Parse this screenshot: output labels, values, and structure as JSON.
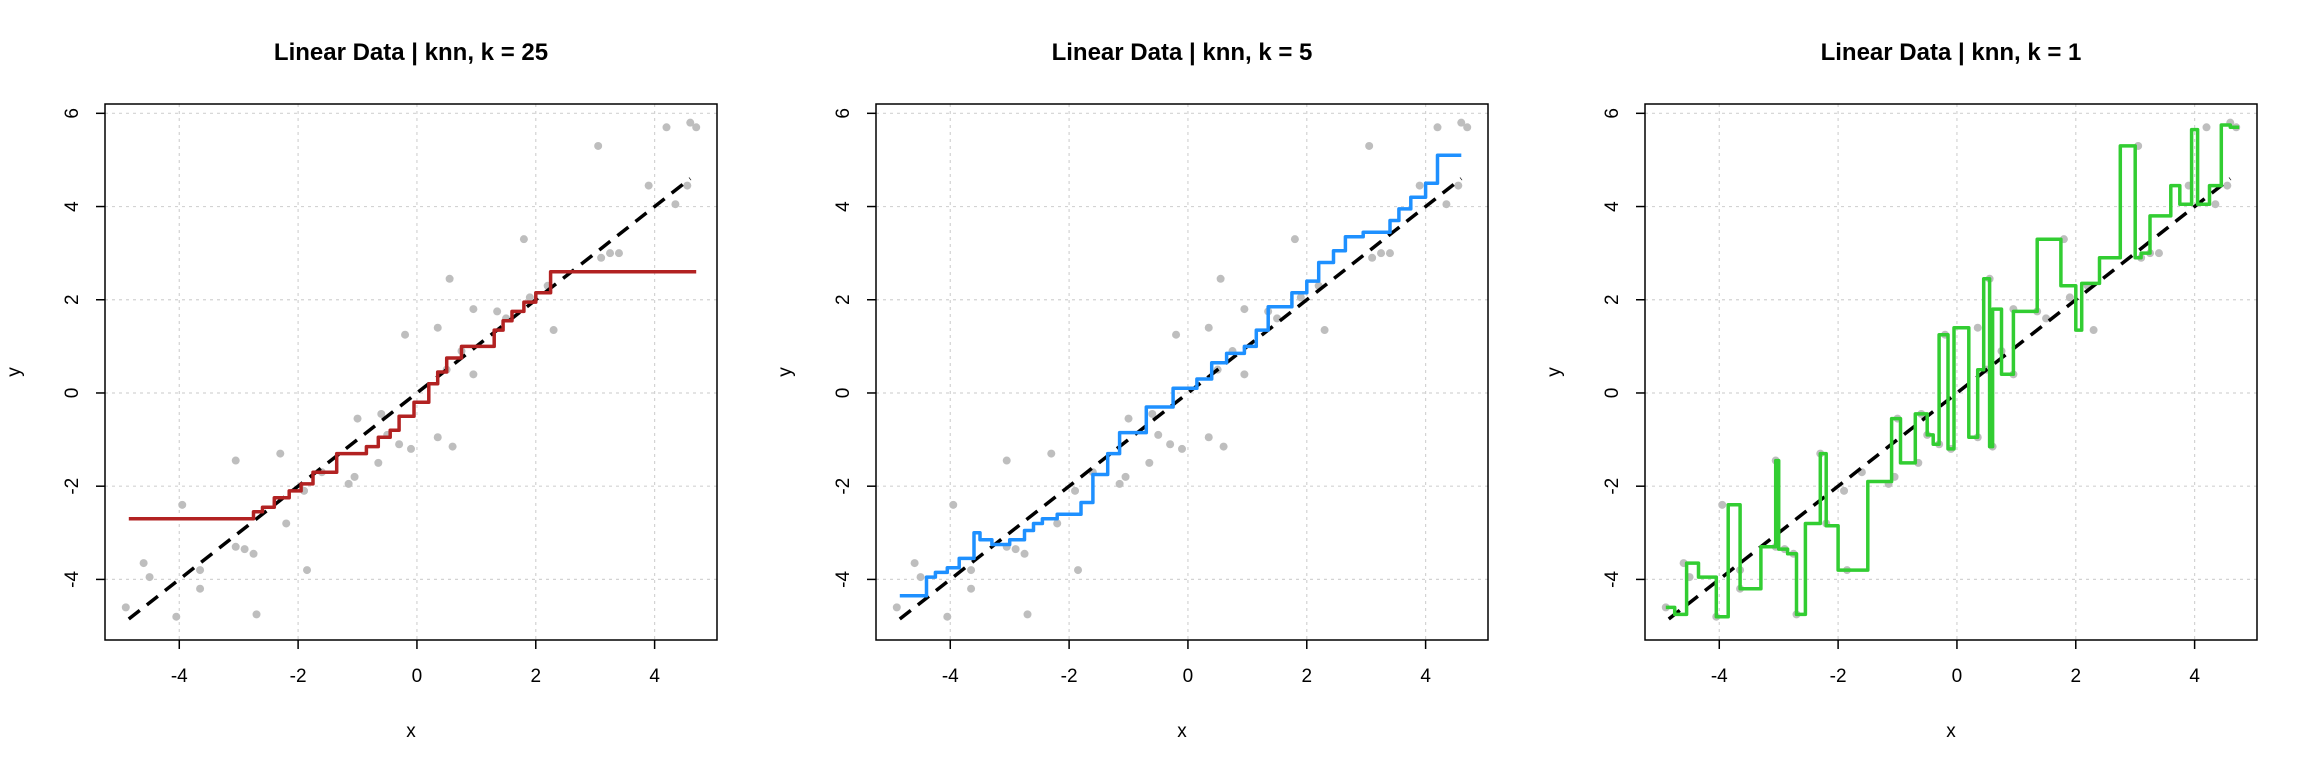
{
  "chart_data": [
    {
      "type": "line",
      "title": "Linear Data | knn, k = 25",
      "xlabel": "x",
      "ylabel": "y",
      "xlim": [
        -5.25,
        5.05
      ],
      "ylim": [
        -5.3,
        6.2
      ],
      "xticks": [
        -4,
        -2,
        0,
        2,
        4
      ],
      "yticks": [
        -4,
        -2,
        0,
        2,
        4,
        6
      ],
      "grid": true,
      "reference_line": {
        "x": [
          -4.85,
          4.6
        ],
        "y": [
          -4.85,
          4.6
        ],
        "style": "dashed",
        "color": "#000000"
      },
      "points": [
        [
          -4.9,
          -4.6
        ],
        [
          -4.6,
          -3.65
        ],
        [
          -4.5,
          -3.95
        ],
        [
          -4.05,
          -4.8
        ],
        [
          -3.95,
          -2.4
        ],
        [
          -3.65,
          -4.2
        ],
        [
          -3.65,
          -3.8
        ],
        [
          -3.05,
          -1.45
        ],
        [
          -3.05,
          -3.3
        ],
        [
          -2.9,
          -3.35
        ],
        [
          -2.75,
          -3.45
        ],
        [
          -2.7,
          -4.75
        ],
        [
          -2.3,
          -1.3
        ],
        [
          -2.2,
          -2.8
        ],
        [
          -1.9,
          -2.1
        ],
        [
          -1.85,
          -3.8
        ],
        [
          -1.6,
          -1.7
        ],
        [
          -1.15,
          -1.95
        ],
        [
          -1.05,
          -1.8
        ],
        [
          -1.0,
          -0.55
        ],
        [
          -0.65,
          -1.5
        ],
        [
          -0.6,
          -0.45
        ],
        [
          -0.5,
          -0.9
        ],
        [
          -0.3,
          -1.1
        ],
        [
          -0.2,
          1.25
        ],
        [
          -0.1,
          -1.2
        ],
        [
          0.35,
          1.4
        ],
        [
          0.35,
          -0.95
        ],
        [
          0.5,
          0.5
        ],
        [
          0.55,
          2.45
        ],
        [
          0.6,
          -1.15
        ],
        [
          0.75,
          0.9
        ],
        [
          0.95,
          1.8
        ],
        [
          0.95,
          0.4
        ],
        [
          1.35,
          1.75
        ],
        [
          1.5,
          1.6
        ],
        [
          1.8,
          3.3
        ],
        [
          1.9,
          2.05
        ],
        [
          2.2,
          2.3
        ],
        [
          2.3,
          1.35
        ],
        [
          3.05,
          5.3
        ],
        [
          3.1,
          2.9
        ],
        [
          3.25,
          3.0
        ],
        [
          3.4,
          3.0
        ],
        [
          3.9,
          4.45
        ],
        [
          4.2,
          5.7
        ],
        [
          4.35,
          4.05
        ],
        [
          4.55,
          4.45
        ],
        [
          4.6,
          5.8
        ],
        [
          4.7,
          5.7
        ]
      ],
      "series": [
        {
          "name": "",
          "color": "#b22222",
          "x": [
            -4.85,
            -2.75,
            -2.75,
            -2.6,
            -2.6,
            -2.4,
            -2.4,
            -2.15,
            -2.15,
            -1.95,
            -1.95,
            -1.75,
            -1.75,
            -1.35,
            -1.35,
            -0.85,
            -0.85,
            -0.65,
            -0.65,
            -0.45,
            -0.45,
            -0.3,
            -0.3,
            -0.05,
            -0.05,
            0.2,
            0.2,
            0.35,
            0.35,
            0.5,
            0.5,
            0.75,
            0.75,
            1.3,
            1.3,
            1.45,
            1.45,
            1.6,
            1.6,
            1.8,
            1.8,
            2.0,
            2.0,
            2.25,
            2.25,
            4.7
          ],
          "y": [
            -2.7,
            -2.7,
            -2.55,
            -2.55,
            -2.45,
            -2.45,
            -2.25,
            -2.25,
            -2.1,
            -2.1,
            -1.95,
            -1.95,
            -1.7,
            -1.7,
            -1.3,
            -1.3,
            -1.15,
            -1.15,
            -0.95,
            -0.95,
            -0.8,
            -0.8,
            -0.5,
            -0.5,
            -0.2,
            -0.2,
            0.2,
            0.2,
            0.45,
            0.45,
            0.75,
            0.75,
            1.0,
            1.0,
            1.35,
            1.35,
            1.55,
            1.55,
            1.75,
            1.75,
            1.95,
            1.95,
            2.15,
            2.15,
            2.6,
            2.6
          ]
        }
      ]
    },
    {
      "type": "line",
      "title": "Linear Data | knn, k = 5",
      "xlabel": "x",
      "ylabel": "y",
      "xlim": [
        -5.25,
        5.05
      ],
      "ylim": [
        -5.3,
        6.2
      ],
      "xticks": [
        -4,
        -2,
        0,
        2,
        4
      ],
      "yticks": [
        -4,
        -2,
        0,
        2,
        4,
        6
      ],
      "grid": true,
      "reference_line": {
        "x": [
          -4.85,
          4.6
        ],
        "y": [
          -4.85,
          4.6
        ],
        "style": "dashed",
        "color": "#000000"
      },
      "points": [
        [
          -4.9,
          -4.6
        ],
        [
          -4.6,
          -3.65
        ],
        [
          -4.5,
          -3.95
        ],
        [
          -4.05,
          -4.8
        ],
        [
          -3.95,
          -2.4
        ],
        [
          -3.65,
          -4.2
        ],
        [
          -3.65,
          -3.8
        ],
        [
          -3.05,
          -1.45
        ],
        [
          -3.05,
          -3.3
        ],
        [
          -2.9,
          -3.35
        ],
        [
          -2.75,
          -3.45
        ],
        [
          -2.7,
          -4.75
        ],
        [
          -2.3,
          -1.3
        ],
        [
          -2.2,
          -2.8
        ],
        [
          -1.9,
          -2.1
        ],
        [
          -1.85,
          -3.8
        ],
        [
          -1.6,
          -1.7
        ],
        [
          -1.15,
          -1.95
        ],
        [
          -1.05,
          -1.8
        ],
        [
          -1.0,
          -0.55
        ],
        [
          -0.65,
          -1.5
        ],
        [
          -0.6,
          -0.45
        ],
        [
          -0.5,
          -0.9
        ],
        [
          -0.3,
          -1.1
        ],
        [
          -0.2,
          1.25
        ],
        [
          -0.1,
          -1.2
        ],
        [
          0.35,
          1.4
        ],
        [
          0.35,
          -0.95
        ],
        [
          0.5,
          0.5
        ],
        [
          0.55,
          2.45
        ],
        [
          0.6,
          -1.15
        ],
        [
          0.75,
          0.9
        ],
        [
          0.95,
          1.8
        ],
        [
          0.95,
          0.4
        ],
        [
          1.35,
          1.75
        ],
        [
          1.5,
          1.6
        ],
        [
          1.8,
          3.3
        ],
        [
          1.9,
          2.05
        ],
        [
          2.2,
          2.3
        ],
        [
          2.3,
          1.35
        ],
        [
          3.05,
          5.3
        ],
        [
          3.1,
          2.9
        ],
        [
          3.25,
          3.0
        ],
        [
          3.4,
          3.0
        ],
        [
          3.9,
          4.45
        ],
        [
          4.2,
          5.7
        ],
        [
          4.35,
          4.05
        ],
        [
          4.55,
          4.45
        ],
        [
          4.6,
          5.8
        ],
        [
          4.7,
          5.7
        ]
      ],
      "series": [
        {
          "name": "",
          "color": "#1e90ff",
          "x": [
            -4.85,
            -4.4,
            -4.4,
            -4.25,
            -4.25,
            -4.05,
            -4.05,
            -3.85,
            -3.85,
            -3.6,
            -3.6,
            -3.5,
            -3.5,
            -3.3,
            -3.3,
            -3.0,
            -3.0,
            -2.75,
            -2.75,
            -2.6,
            -2.6,
            -2.45,
            -2.45,
            -2.2,
            -2.2,
            -1.8,
            -1.8,
            -1.6,
            -1.6,
            -1.35,
            -1.35,
            -1.15,
            -1.15,
            -0.7,
            -0.7,
            -0.25,
            -0.25,
            0.15,
            0.15,
            0.4,
            0.4,
            0.65,
            0.65,
            0.95,
            0.95,
            1.15,
            1.15,
            1.35,
            1.35,
            1.75,
            1.75,
            2.0,
            2.0,
            2.2,
            2.2,
            2.45,
            2.45,
            2.65,
            2.65,
            2.95,
            2.95,
            3.4,
            3.4,
            3.55,
            3.55,
            3.75,
            3.75,
            4.0,
            4.0,
            4.2,
            4.2,
            4.6
          ],
          "y": [
            -4.35,
            -4.35,
            -3.95,
            -3.95,
            -3.85,
            -3.85,
            -3.75,
            -3.75,
            -3.55,
            -3.55,
            -3.0,
            -3.0,
            -3.15,
            -3.15,
            -3.25,
            -3.25,
            -3.15,
            -3.15,
            -2.95,
            -2.95,
            -2.8,
            -2.8,
            -2.7,
            -2.7,
            -2.6,
            -2.6,
            -2.35,
            -2.35,
            -1.75,
            -1.75,
            -1.3,
            -1.3,
            -0.85,
            -0.85,
            -0.3,
            -0.3,
            0.1,
            0.1,
            0.3,
            0.3,
            0.65,
            0.65,
            0.85,
            0.85,
            1.0,
            1.0,
            1.35,
            1.35,
            1.85,
            1.85,
            2.15,
            2.15,
            2.4,
            2.4,
            2.8,
            2.8,
            3.05,
            3.05,
            3.35,
            3.35,
            3.45,
            3.45,
            3.7,
            3.7,
            3.95,
            3.95,
            4.2,
            4.2,
            4.5,
            4.5,
            5.1,
            5.1
          ]
        }
      ]
    },
    {
      "type": "line",
      "title": "Linear Data | knn, k = 1",
      "xlabel": "x",
      "ylabel": "y",
      "xlim": [
        -5.25,
        5.05
      ],
      "ylim": [
        -5.3,
        6.2
      ],
      "xticks": [
        -4,
        -2,
        0,
        2,
        4
      ],
      "yticks": [
        -4,
        -2,
        0,
        2,
        4,
        6
      ],
      "grid": true,
      "reference_line": {
        "x": [
          -4.85,
          4.6
        ],
        "y": [
          -4.85,
          4.6
        ],
        "style": "dashed",
        "color": "#000000"
      },
      "points": [
        [
          -4.9,
          -4.6
        ],
        [
          -4.6,
          -3.65
        ],
        [
          -4.5,
          -3.95
        ],
        [
          -4.05,
          -4.8
        ],
        [
          -3.95,
          -2.4
        ],
        [
          -3.65,
          -4.2
        ],
        [
          -3.65,
          -3.8
        ],
        [
          -3.05,
          -1.45
        ],
        [
          -3.05,
          -3.3
        ],
        [
          -2.9,
          -3.35
        ],
        [
          -2.75,
          -3.45
        ],
        [
          -2.7,
          -4.75
        ],
        [
          -2.3,
          -1.3
        ],
        [
          -2.2,
          -2.8
        ],
        [
          -1.9,
          -2.1
        ],
        [
          -1.85,
          -3.8
        ],
        [
          -1.6,
          -1.7
        ],
        [
          -1.15,
          -1.95
        ],
        [
          -1.05,
          -1.8
        ],
        [
          -1.0,
          -0.55
        ],
        [
          -0.65,
          -1.5
        ],
        [
          -0.6,
          -0.45
        ],
        [
          -0.5,
          -0.9
        ],
        [
          -0.3,
          -1.1
        ],
        [
          -0.2,
          1.25
        ],
        [
          -0.1,
          -1.2
        ],
        [
          0.35,
          1.4
        ],
        [
          0.35,
          -0.95
        ],
        [
          0.5,
          0.5
        ],
        [
          0.55,
          2.45
        ],
        [
          0.6,
          -1.15
        ],
        [
          0.75,
          0.9
        ],
        [
          0.95,
          1.8
        ],
        [
          0.95,
          0.4
        ],
        [
          1.35,
          1.75
        ],
        [
          1.5,
          1.6
        ],
        [
          1.8,
          3.3
        ],
        [
          1.9,
          2.05
        ],
        [
          2.2,
          2.3
        ],
        [
          2.3,
          1.35
        ],
        [
          3.05,
          5.3
        ],
        [
          3.1,
          2.9
        ],
        [
          3.25,
          3.0
        ],
        [
          3.4,
          3.0
        ],
        [
          3.9,
          4.45
        ],
        [
          4.2,
          5.7
        ],
        [
          4.35,
          4.05
        ],
        [
          4.55,
          4.45
        ],
        [
          4.6,
          5.8
        ],
        [
          4.7,
          5.7
        ]
      ],
      "series": [
        {
          "name": "",
          "color": "#32cd32",
          "x": [
            -4.9,
            -4.75,
            -4.75,
            -4.55,
            -4.55,
            -4.35,
            -4.35,
            -4.05,
            -4.05,
            -3.85,
            -3.85,
            -3.65,
            -3.65,
            -3.3,
            -3.3,
            -3.05,
            -3.05,
            -3.0,
            -3.0,
            -2.85,
            -2.85,
            -2.7,
            -2.7,
            -2.55,
            -2.55,
            -2.3,
            -2.3,
            -2.2,
            -2.2,
            -2.0,
            -2.0,
            -1.5,
            -1.5,
            -1.1,
            -1.1,
            -0.95,
            -0.95,
            -0.7,
            -0.7,
            -0.5,
            -0.5,
            -0.4,
            -0.4,
            -0.3,
            -0.3,
            -0.15,
            -0.15,
            -0.05,
            -0.05,
            0.2,
            0.2,
            0.35,
            0.35,
            0.45,
            0.45,
            0.55,
            0.55,
            0.6,
            0.6,
            0.75,
            0.75,
            0.95,
            0.95,
            1.15,
            1.15,
            1.35,
            1.35,
            1.75,
            1.75,
            2.0,
            2.0,
            2.1,
            2.1,
            2.4,
            2.4,
            2.75,
            2.75,
            3.0,
            3.0,
            3.1,
            3.1,
            3.25,
            3.25,
            3.6,
            3.6,
            3.75,
            3.75,
            3.95,
            3.95,
            4.05,
            4.05,
            4.25,
            4.25,
            4.45,
            4.45,
            4.6,
            4.6,
            4.75
          ],
          "y": [
            -4.6,
            -4.6,
            -4.75,
            -4.75,
            -3.65,
            -3.65,
            -3.95,
            -3.95,
            -4.8,
            -4.8,
            -2.4,
            -2.4,
            -4.2,
            -4.2,
            -3.3,
            -3.3,
            -1.45,
            -1.45,
            -3.35,
            -3.35,
            -3.45,
            -3.45,
            -4.75,
            -4.75,
            -2.8,
            -2.8,
            -1.3,
            -1.3,
            -2.85,
            -2.85,
            -3.8,
            -3.8,
            -1.9,
            -1.9,
            -0.55,
            -0.55,
            -1.5,
            -1.5,
            -0.45,
            -0.45,
            -0.9,
            -0.9,
            -1.1,
            -1.1,
            1.25,
            1.25,
            -1.2,
            -1.2,
            1.4,
            1.4,
            -0.95,
            -0.95,
            0.5,
            0.5,
            2.45,
            2.45,
            -1.15,
            -1.15,
            1.8,
            1.8,
            0.4,
            0.4,
            1.75,
            1.75,
            1.75,
            1.75,
            3.3,
            3.3,
            2.3,
            2.3,
            1.35,
            1.35,
            2.35,
            2.35,
            2.9,
            2.9,
            5.3,
            5.3,
            2.9,
            2.9,
            3.0,
            3.0,
            3.8,
            3.8,
            4.45,
            4.45,
            4.05,
            4.05,
            5.65,
            5.65,
            4.05,
            4.05,
            4.45,
            4.45,
            5.75,
            5.75,
            5.7,
            5.7
          ]
        }
      ]
    }
  ],
  "style": {
    "point_color": "#bebebe",
    "grid_color": "#d3d3d3",
    "axis_color": "#000000"
  }
}
